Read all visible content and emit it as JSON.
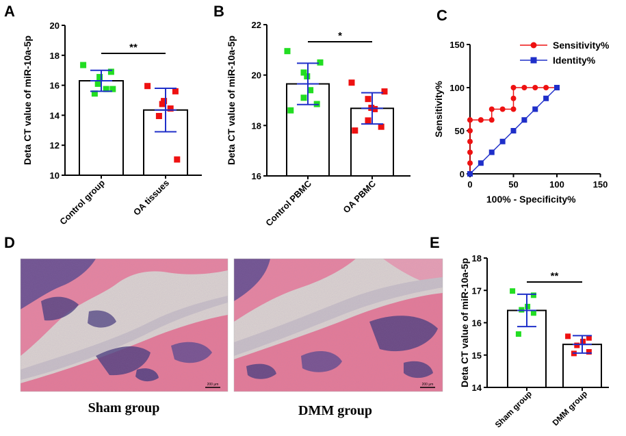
{
  "colors": {
    "green": "#22dd22",
    "red": "#ee1111",
    "error_bar": "#1f2fc9",
    "roc_sens": "#ee1111",
    "roc_ident": "#1f2fc9",
    "tissue_pink": "#e8859e",
    "tissue_purple": "#4a3d7c",
    "tissue_bg": "#ddd6d0"
  },
  "panels": {
    "A": {
      "letter": "A"
    },
    "B": {
      "letter": "B"
    },
    "C": {
      "letter": "C"
    },
    "D": {
      "letter": "D",
      "caption_left": "Sham group",
      "caption_right": "DMM group",
      "scale_bar": "200 μm"
    },
    "E": {
      "letter": "E"
    }
  },
  "chart_data": [
    {
      "id": "A",
      "type": "bar",
      "ylabel": "Deta CT value of miR-10a-5p",
      "ylim": [
        10,
        20
      ],
      "yticks": [
        "10",
        "12",
        "14",
        "16",
        "18",
        "20"
      ],
      "categories": [
        "Control group",
        "OA tissues"
      ],
      "values": [
        16.3,
        14.35
      ],
      "errors": [
        0.7,
        1.45
      ],
      "points": [
        [
          17.35,
          16.9,
          16.55,
          16.1,
          15.75,
          15.45,
          15.75
        ],
        [
          15.95,
          15.6,
          14.95,
          14.75,
          14.45,
          13.95,
          11.05
        ]
      ],
      "significance": "**"
    },
    {
      "id": "B",
      "type": "bar",
      "ylabel": "Deta CT value of miR-10a-5p",
      "ylim": [
        16,
        22
      ],
      "yticks": [
        "16",
        "18",
        "20",
        "22"
      ],
      "categories": [
        "Control PBMC",
        "OA PBMC"
      ],
      "values": [
        19.65,
        18.68
      ],
      "errors": [
        0.82,
        0.62
      ],
      "points": [
        [
          20.95,
          20.5,
          20.1,
          19.95,
          19.4,
          19.1,
          18.85,
          18.6
        ],
        [
          19.7,
          19.35,
          19.05,
          18.7,
          18.65,
          18.2,
          17.95,
          17.8
        ]
      ],
      "significance": "*"
    },
    {
      "id": "C",
      "type": "line",
      "xlabel": "100% - Specificity%",
      "ylabel": "Sensitivity%",
      "xlim": [
        0,
        150
      ],
      "ylim": [
        0,
        150
      ],
      "xticks": [
        "0",
        "50",
        "100",
        "150"
      ],
      "yticks": [
        "0",
        "50",
        "100",
        "150"
      ],
      "legend_position": "top-right",
      "series": [
        {
          "name": "Sensitivity%",
          "marker": "circle",
          "x": [
            0,
            0,
            0,
            0,
            0,
            0,
            0,
            12.5,
            12.5,
            25,
            25,
            37.5,
            50,
            50,
            50,
            62.5,
            75,
            87.5,
            100
          ],
          "y": [
            0,
            12.5,
            25,
            37.5,
            50,
            62.5,
            62.5,
            62.5,
            62.5,
            62.5,
            75,
            75,
            75,
            87.5,
            100,
            100,
            100,
            100,
            100
          ]
        },
        {
          "name": "Identity%",
          "marker": "square",
          "x": [
            0,
            12.5,
            25,
            37.5,
            50,
            62.5,
            75,
            87.5,
            100
          ],
          "y": [
            0,
            12.5,
            25,
            37.5,
            50,
            62.5,
            75,
            87.5,
            100
          ]
        }
      ]
    },
    {
      "id": "E",
      "type": "bar",
      "ylabel": "Deta CT value of miR-10a-5p",
      "ylim": [
        14,
        18
      ],
      "yticks": [
        "14",
        "15",
        "16",
        "17",
        "18"
      ],
      "categories": [
        "Sham group",
        "DMM group"
      ],
      "values": [
        16.38,
        15.33
      ],
      "errors": [
        0.5,
        0.27
      ],
      "points": [
        [
          16.98,
          16.85,
          16.5,
          16.4,
          16.3,
          15.65
        ],
        [
          15.58,
          15.53,
          15.42,
          15.3,
          15.1,
          15.05
        ]
      ],
      "significance": "**"
    }
  ]
}
